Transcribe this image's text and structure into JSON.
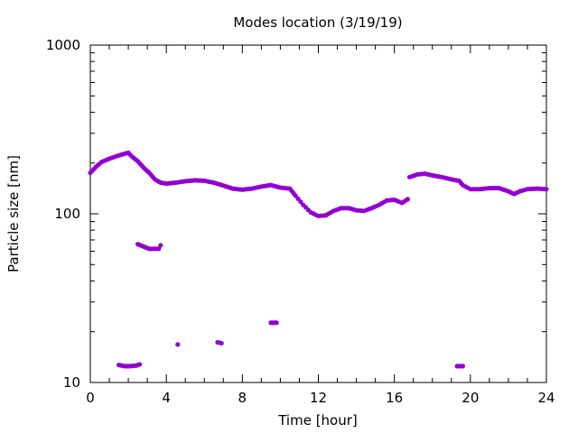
{
  "chart_data": {
    "type": "scatter",
    "title": "Modes location (3/19/19)",
    "xlabel": "Time [hour]",
    "ylabel": "Particle size [nm]",
    "xlim": [
      0,
      24
    ],
    "ylim": [
      10,
      1000
    ],
    "yscale": "log",
    "grid": false,
    "legend": "none",
    "marker_color": "#9400d3",
    "x_ticks": [
      {
        "value": 0,
        "label": "0"
      },
      {
        "value": 4,
        "label": "4"
      },
      {
        "value": 8,
        "label": "8"
      },
      {
        "value": 12,
        "label": "12"
      },
      {
        "value": 16,
        "label": "16"
      },
      {
        "value": 20,
        "label": "20"
      },
      {
        "value": 24,
        "label": "24"
      }
    ],
    "y_ticks": [
      {
        "value": 10,
        "label": "10"
      },
      {
        "value": 100,
        "label": "100"
      },
      {
        "value": 1000,
        "label": "1000"
      }
    ],
    "series": [
      {
        "values": [
          [
            0.0,
            175
          ],
          [
            0.3,
            190
          ],
          [
            0.6,
            203
          ],
          [
            1.0,
            212
          ],
          [
            1.4,
            220
          ],
          [
            1.8,
            227
          ],
          [
            2.0,
            230
          ],
          [
            2.2,
            218
          ],
          [
            2.5,
            205
          ],
          [
            2.8,
            188
          ],
          [
            3.1,
            175
          ],
          [
            3.4,
            160
          ],
          [
            3.7,
            153
          ],
          [
            4.0,
            151
          ],
          [
            4.5,
            153
          ],
          [
            5.0,
            156
          ],
          [
            5.5,
            158
          ],
          [
            6.0,
            157
          ],
          [
            6.5,
            153
          ],
          [
            7.0,
            147
          ],
          [
            7.5,
            141
          ],
          [
            8.0,
            139
          ],
          [
            8.5,
            141
          ],
          [
            9.0,
            145
          ],
          [
            9.5,
            148
          ],
          [
            10.0,
            143
          ],
          [
            10.5,
            141
          ],
          [
            10.8,
            128
          ],
          [
            11.2,
            113
          ],
          [
            11.6,
            102
          ],
          [
            12.0,
            97
          ],
          [
            12.4,
            98
          ],
          [
            12.8,
            104
          ],
          [
            13.2,
            108
          ],
          [
            13.6,
            108
          ],
          [
            14.0,
            105
          ],
          [
            14.4,
            104
          ],
          [
            14.8,
            108
          ],
          [
            15.2,
            113
          ],
          [
            15.6,
            120
          ],
          [
            16.0,
            121
          ],
          [
            16.4,
            116
          ],
          [
            16.7,
            122
          ],
          [
            16.8,
            165
          ],
          [
            17.2,
            171
          ],
          [
            17.6,
            173
          ],
          [
            18.0,
            169
          ],
          [
            18.5,
            165
          ],
          [
            19.0,
            160
          ],
          [
            19.4,
            157
          ],
          [
            19.6,
            148
          ],
          [
            20.0,
            140
          ],
          [
            20.5,
            140
          ],
          [
            21.0,
            142
          ],
          [
            21.5,
            142
          ],
          [
            22.0,
            136
          ],
          [
            22.3,
            131
          ],
          [
            22.6,
            136
          ],
          [
            23.0,
            140
          ],
          [
            23.5,
            141
          ],
          [
            24.0,
            140
          ]
        ]
      },
      {
        "values": [
          [
            2.5,
            66
          ],
          [
            2.8,
            64
          ],
          [
            3.1,
            62
          ],
          [
            3.3,
            62
          ],
          [
            3.6,
            62
          ],
          [
            3.7,
            65
          ]
        ]
      },
      {
        "values": [
          [
            1.5,
            12.7
          ],
          [
            1.8,
            12.5
          ],
          [
            2.1,
            12.5
          ],
          [
            2.4,
            12.6
          ],
          [
            2.6,
            12.8
          ],
          [
            4.6,
            16.8
          ],
          [
            6.7,
            17.3
          ],
          [
            6.9,
            17.1
          ],
          [
            9.5,
            22.6
          ],
          [
            9.8,
            22.6
          ],
          [
            19.3,
            12.5
          ],
          [
            19.6,
            12.5
          ]
        ]
      }
    ]
  }
}
